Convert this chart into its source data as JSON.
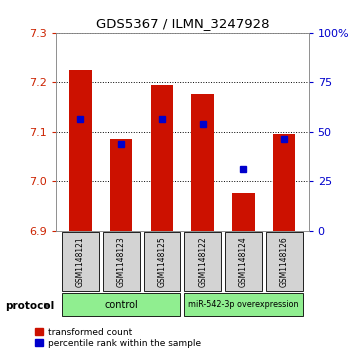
{
  "title": "GDS5367 / ILMN_3247928",
  "samples": [
    "GSM1148121",
    "GSM1148123",
    "GSM1148125",
    "GSM1148122",
    "GSM1148124",
    "GSM1148126"
  ],
  "red_values": [
    7.225,
    7.085,
    7.195,
    7.175,
    6.975,
    7.095
  ],
  "blue_values": [
    7.125,
    7.075,
    7.125,
    7.115,
    7.025,
    7.085
  ],
  "y_min": 6.9,
  "y_max": 7.3,
  "y_ticks_left": [
    6.9,
    7.0,
    7.1,
    7.2,
    7.3
  ],
  "y_ticks_right": [
    0,
    25,
    50,
    75,
    100
  ],
  "bar_color": "#CC1100",
  "blue_color": "#0000CC",
  "label_color_left": "#CC2200",
  "label_color_right": "#0000CC",
  "gray_box_color": "#D3D3D3",
  "green_color": "#90EE90",
  "protocol_label": "protocol",
  "legend_red": "transformed count",
  "legend_blue": "percentile rank within the sample",
  "ctrl_label": "control",
  "mir_label": "miR-542-3p overexpression"
}
